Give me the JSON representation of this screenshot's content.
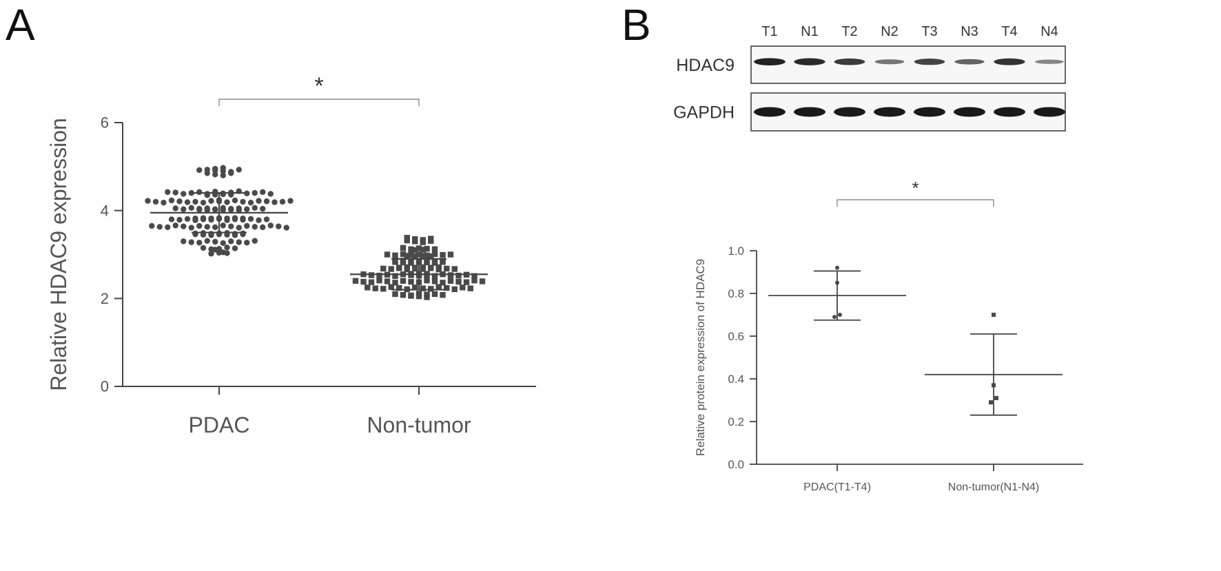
{
  "panel_a": {
    "letter": "A",
    "significance": "*",
    "chart_data": {
      "type": "scatter",
      "title": "",
      "ylabel": "Relative HDAC9 expression",
      "xlabel": "",
      "categories": [
        "PDAC",
        "Non-tumor"
      ],
      "ylim": [
        0,
        6
      ],
      "yticks": [
        "0",
        "2",
        "4",
        "6"
      ],
      "grid": false,
      "series": [
        {
          "category": "PDAC",
          "marker": "circle",
          "mean": 3.95,
          "sd_upper": 4.4,
          "sd_lower": 3.5,
          "values": [
            4.95,
            4.92,
            4.93,
            4.91,
            4.9,
            4.85,
            4.82,
            4.8,
            4.85,
            4.88,
            4.93,
            4.97,
            4.42,
            4.41,
            4.38,
            4.35,
            4.4,
            4.42,
            4.38,
            4.36,
            4.43,
            4.39,
            4.41,
            4.37,
            4.44,
            4.39,
            4.36,
            4.4,
            4.42,
            4.38,
            4.22,
            4.2,
            4.18,
            4.23,
            4.21,
            4.19,
            4.24,
            4.2,
            4.18,
            4.22,
            4.21,
            4.19,
            4.23,
            4.2,
            4.18,
            4.22,
            4.21,
            4.19,
            4.2,
            4.22,
            4.05,
            4.03,
            4.02,
            4.06,
            4.04,
            4.01,
            4.05,
            4.03,
            4.02,
            4.06,
            4.04,
            4.01,
            4.05,
            4.03,
            4.02,
            4.06,
            4.04,
            4.01,
            3.82,
            3.8,
            3.79,
            3.83,
            3.81,
            3.78,
            3.82,
            3.8,
            3.79,
            3.83,
            3.81,
            3.78,
            3.82,
            3.8,
            3.79,
            3.83,
            3.81,
            3.78,
            3.8,
            3.82,
            3.65,
            3.63,
            3.62,
            3.66,
            3.64,
            3.61,
            3.65,
            3.63,
            3.62,
            3.66,
            3.64,
            3.61,
            3.65,
            3.63,
            3.62,
            3.66,
            3.64,
            3.61,
            3.48,
            3.46,
            3.45,
            3.49,
            3.47,
            3.44,
            3.48,
            3.46,
            3.45,
            3.49,
            3.47,
            3.44,
            3.48,
            3.46,
            3.3,
            3.28,
            3.27,
            3.31,
            3.29,
            3.26,
            3.3,
            3.28,
            3.27,
            3.31,
            3.15,
            3.12,
            3.13,
            3.16,
            3.14,
            3.11,
            3.05,
            3.02,
            3.04,
            3.03
          ]
        },
        {
          "category": "Non-tumor",
          "marker": "square",
          "mean": 2.55,
          "sd_upper": 2.9,
          "sd_lower": 2.2,
          "values": [
            3.38,
            3.35,
            3.32,
            3.3,
            3.28,
            3.33,
            3.36,
            3.31,
            3.15,
            3.12,
            3.1,
            3.14,
            3.11,
            3.13,
            3.12,
            3.0,
            2.98,
            2.97,
            3.01,
            2.99,
            2.96,
            3.0,
            2.98,
            2.97,
            3.01,
            2.99,
            2.96,
            3.0,
            2.85,
            2.83,
            2.82,
            2.86,
            2.84,
            2.81,
            2.85,
            2.83,
            2.82,
            2.86,
            2.84,
            2.81,
            2.85,
            2.83,
            2.7,
            2.68,
            2.67,
            2.71,
            2.69,
            2.66,
            2.7,
            2.68,
            2.67,
            2.71,
            2.69,
            2.66,
            2.7,
            2.68,
            2.67,
            2.71,
            2.55,
            2.53,
            2.52,
            2.56,
            2.54,
            2.51,
            2.55,
            2.53,
            2.52,
            2.56,
            2.54,
            2.51,
            2.55,
            2.53,
            2.52,
            2.56,
            2.54,
            2.51,
            2.4,
            2.38,
            2.37,
            2.41,
            2.39,
            2.36,
            2.4,
            2.38,
            2.37,
            2.41,
            2.39,
            2.36,
            2.4,
            2.38,
            2.37,
            2.41,
            2.39,
            2.25,
            2.23,
            2.22,
            2.26,
            2.24,
            2.21,
            2.25,
            2.23,
            2.22,
            2.26,
            2.24,
            2.21,
            2.25,
            2.23,
            2.1,
            2.08,
            2.07,
            2.11,
            2.09,
            2.06,
            2.1,
            2.08,
            2.05,
            2.03
          ]
        }
      ]
    }
  },
  "panel_b": {
    "letter": "B",
    "blot": {
      "lanes": [
        "T1",
        "N1",
        "T2",
        "N2",
        "T3",
        "N3",
        "T4",
        "N4"
      ],
      "rows": [
        {
          "label": "HDAC9",
          "intensities": [
            0.95,
            0.9,
            0.8,
            0.45,
            0.75,
            0.55,
            0.85,
            0.35
          ]
        },
        {
          "label": "GAPDH",
          "intensities": [
            1,
            1,
            1,
            1,
            1,
            1,
            1,
            1
          ]
        }
      ]
    },
    "significance": "*",
    "chart_data": {
      "type": "scatter",
      "title": "",
      "ylabel": "Relative protein expression of HDAC9",
      "xlabel": "",
      "categories": [
        "PDAC(T1-T4)",
        "Non-tumor(N1-N4)"
      ],
      "ylim": [
        0,
        1.0
      ],
      "yticks": [
        "0.0",
        "0.2",
        "0.4",
        "0.6",
        "0.8",
        "1.0"
      ],
      "grid": false,
      "series": [
        {
          "category": "PDAC(T1-T4)",
          "marker": "circle",
          "mean": 0.79,
          "sd_upper": 0.905,
          "sd_lower": 0.675,
          "values": [
            0.92,
            0.85,
            0.69,
            0.7
          ]
        },
        {
          "category": "Non-tumor(N1-N4)",
          "marker": "square",
          "mean": 0.42,
          "sd_upper": 0.61,
          "sd_lower": 0.23,
          "values": [
            0.7,
            0.37,
            0.29,
            0.31
          ]
        }
      ]
    }
  },
  "colors": {
    "axis": "#444444",
    "marker": "#4a4a4a",
    "text": "#555555",
    "band": "#1a1a1a",
    "blot_bg": "#f7f7f7"
  }
}
